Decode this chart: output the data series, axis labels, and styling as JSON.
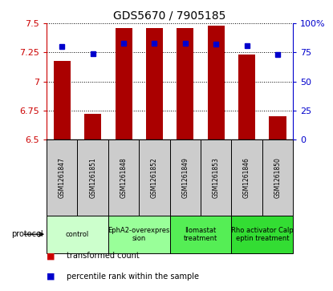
{
  "title": "GDS5670 / 7905185",
  "samples": [
    "GSM1261847",
    "GSM1261851",
    "GSM1261848",
    "GSM1261852",
    "GSM1261849",
    "GSM1261853",
    "GSM1261846",
    "GSM1261850"
  ],
  "transformed_counts": [
    7.18,
    6.72,
    7.46,
    7.46,
    7.46,
    7.48,
    7.23,
    6.7
  ],
  "percentile_ranks": [
    80,
    74,
    83,
    83,
    83,
    82,
    81,
    73
  ],
  "bar_bottom": 6.5,
  "ylim_left": [
    6.5,
    7.5
  ],
  "ylim_right": [
    0,
    100
  ],
  "yticks_left": [
    6.5,
    6.75,
    7.0,
    7.25,
    7.5
  ],
  "yticks_right": [
    0,
    25,
    50,
    75,
    100
  ],
  "ytick_labels_left": [
    "6.5",
    "6.75",
    "7",
    "7.25",
    "7.5"
  ],
  "ytick_labels_right": [
    "0",
    "25",
    "50",
    "75",
    "100%"
  ],
  "protocols": [
    {
      "label": "control",
      "span": [
        0,
        2
      ],
      "color": "#ccffcc"
    },
    {
      "label": "EphA2-overexpres\nsion",
      "span": [
        2,
        4
      ],
      "color": "#99ff99"
    },
    {
      "label": "Ilomastat\ntreatment",
      "span": [
        4,
        6
      ],
      "color": "#55ee55"
    },
    {
      "label": "Rho activator Calp\neptin treatment",
      "span": [
        6,
        8
      ],
      "color": "#33dd33"
    }
  ],
  "bar_color": "#aa0000",
  "dot_color": "#0000cc",
  "grid_color": "#000000",
  "bg_color_samples": "#cccccc",
  "left_axis_color": "#cc0000",
  "right_axis_color": "#0000cc",
  "legend_items": [
    {
      "color": "#cc0000",
      "label": "transformed count"
    },
    {
      "color": "#0000cc",
      "label": "percentile rank within the sample"
    }
  ]
}
